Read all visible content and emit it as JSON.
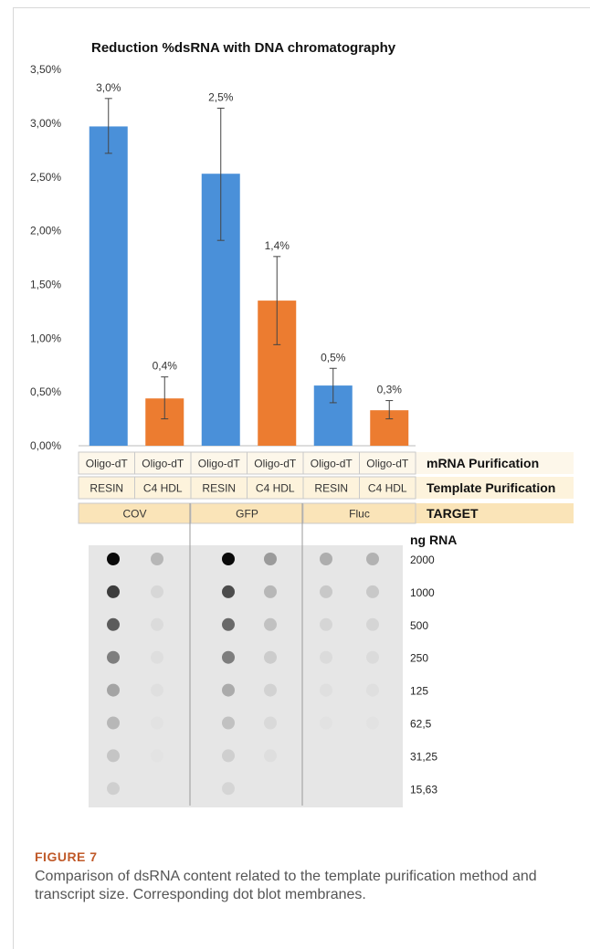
{
  "chart_data": {
    "type": "bar",
    "title": "Reduction %dsRNA with DNA chromatography",
    "ylim": [
      0,
      3.5
    ],
    "y_ticks": [
      "0,00%",
      "0,50%",
      "1,00%",
      "1,50%",
      "2,00%",
      "2,50%",
      "3,00%",
      "3,50%"
    ],
    "y_tick_values": [
      0,
      0.5,
      1.0,
      1.5,
      2.0,
      2.5,
      3.0,
      3.5
    ],
    "grid": false,
    "bars": [
      {
        "value": 2.97,
        "err_low": 2.72,
        "err_high": 3.23,
        "label": "3,0%",
        "color": "#4a90d9"
      },
      {
        "value": 0.44,
        "err_low": 0.25,
        "err_high": 0.64,
        "label": "0,4%",
        "color": "#ec7c30"
      },
      {
        "value": 2.53,
        "err_low": 1.91,
        "err_high": 3.14,
        "label": "2,5%",
        "color": "#4a90d9"
      },
      {
        "value": 1.35,
        "err_low": 0.94,
        "err_high": 1.76,
        "label": "1,4%",
        "color": "#ec7c30"
      },
      {
        "value": 0.56,
        "err_low": 0.4,
        "err_high": 0.72,
        "label": "0,5%",
        "color": "#4a90d9"
      },
      {
        "value": 0.33,
        "err_low": 0.25,
        "err_high": 0.42,
        "label": "0,3%",
        "color": "#ec7c30"
      }
    ],
    "table": {
      "rows": [
        {
          "header": "mRNA Purification",
          "cells": [
            "Oligo-dT",
            "Oligo-dT",
            "Oligo-dT",
            "Oligo-dT",
            "Oligo-dT",
            "Oligo-dT"
          ]
        },
        {
          "header": "Template Purification",
          "cells": [
            "RESIN",
            "C4 HDL",
            "RESIN",
            "C4 HDL",
            "RESIN",
            "C4 HDL"
          ]
        },
        {
          "header": "TARGET",
          "cells": [
            "COV",
            "GFP",
            "Fluc"
          ],
          "span": 2
        }
      ]
    },
    "dot_blot": {
      "header": "ng RNA",
      "amounts": [
        "2000",
        "1000",
        "500",
        "250",
        "125",
        "62,5",
        "31,25",
        "15,63"
      ],
      "intensity_columns": [
        [
          1.0,
          0.85,
          0.75,
          0.62,
          0.45,
          0.35,
          0.27,
          0.2
        ],
        [
          0.35,
          0.14,
          0.1,
          0.07,
          0.05,
          0.03,
          0.02,
          0.0
        ],
        [
          1.0,
          0.8,
          0.7,
          0.62,
          0.42,
          0.3,
          0.2,
          0.15
        ],
        [
          0.5,
          0.35,
          0.3,
          0.22,
          0.17,
          0.12,
          0.07,
          0.0
        ],
        [
          0.4,
          0.25,
          0.15,
          0.1,
          0.06,
          0.03,
          0.0,
          0.0
        ],
        [
          0.38,
          0.25,
          0.15,
          0.1,
          0.06,
          0.03,
          0.0,
          0.0
        ]
      ]
    }
  },
  "figure": {
    "label": "FIGURE 7",
    "caption": "Comparison of dsRNA content related to the template purification method and transcript size. Corresponding dot blot membranes."
  }
}
